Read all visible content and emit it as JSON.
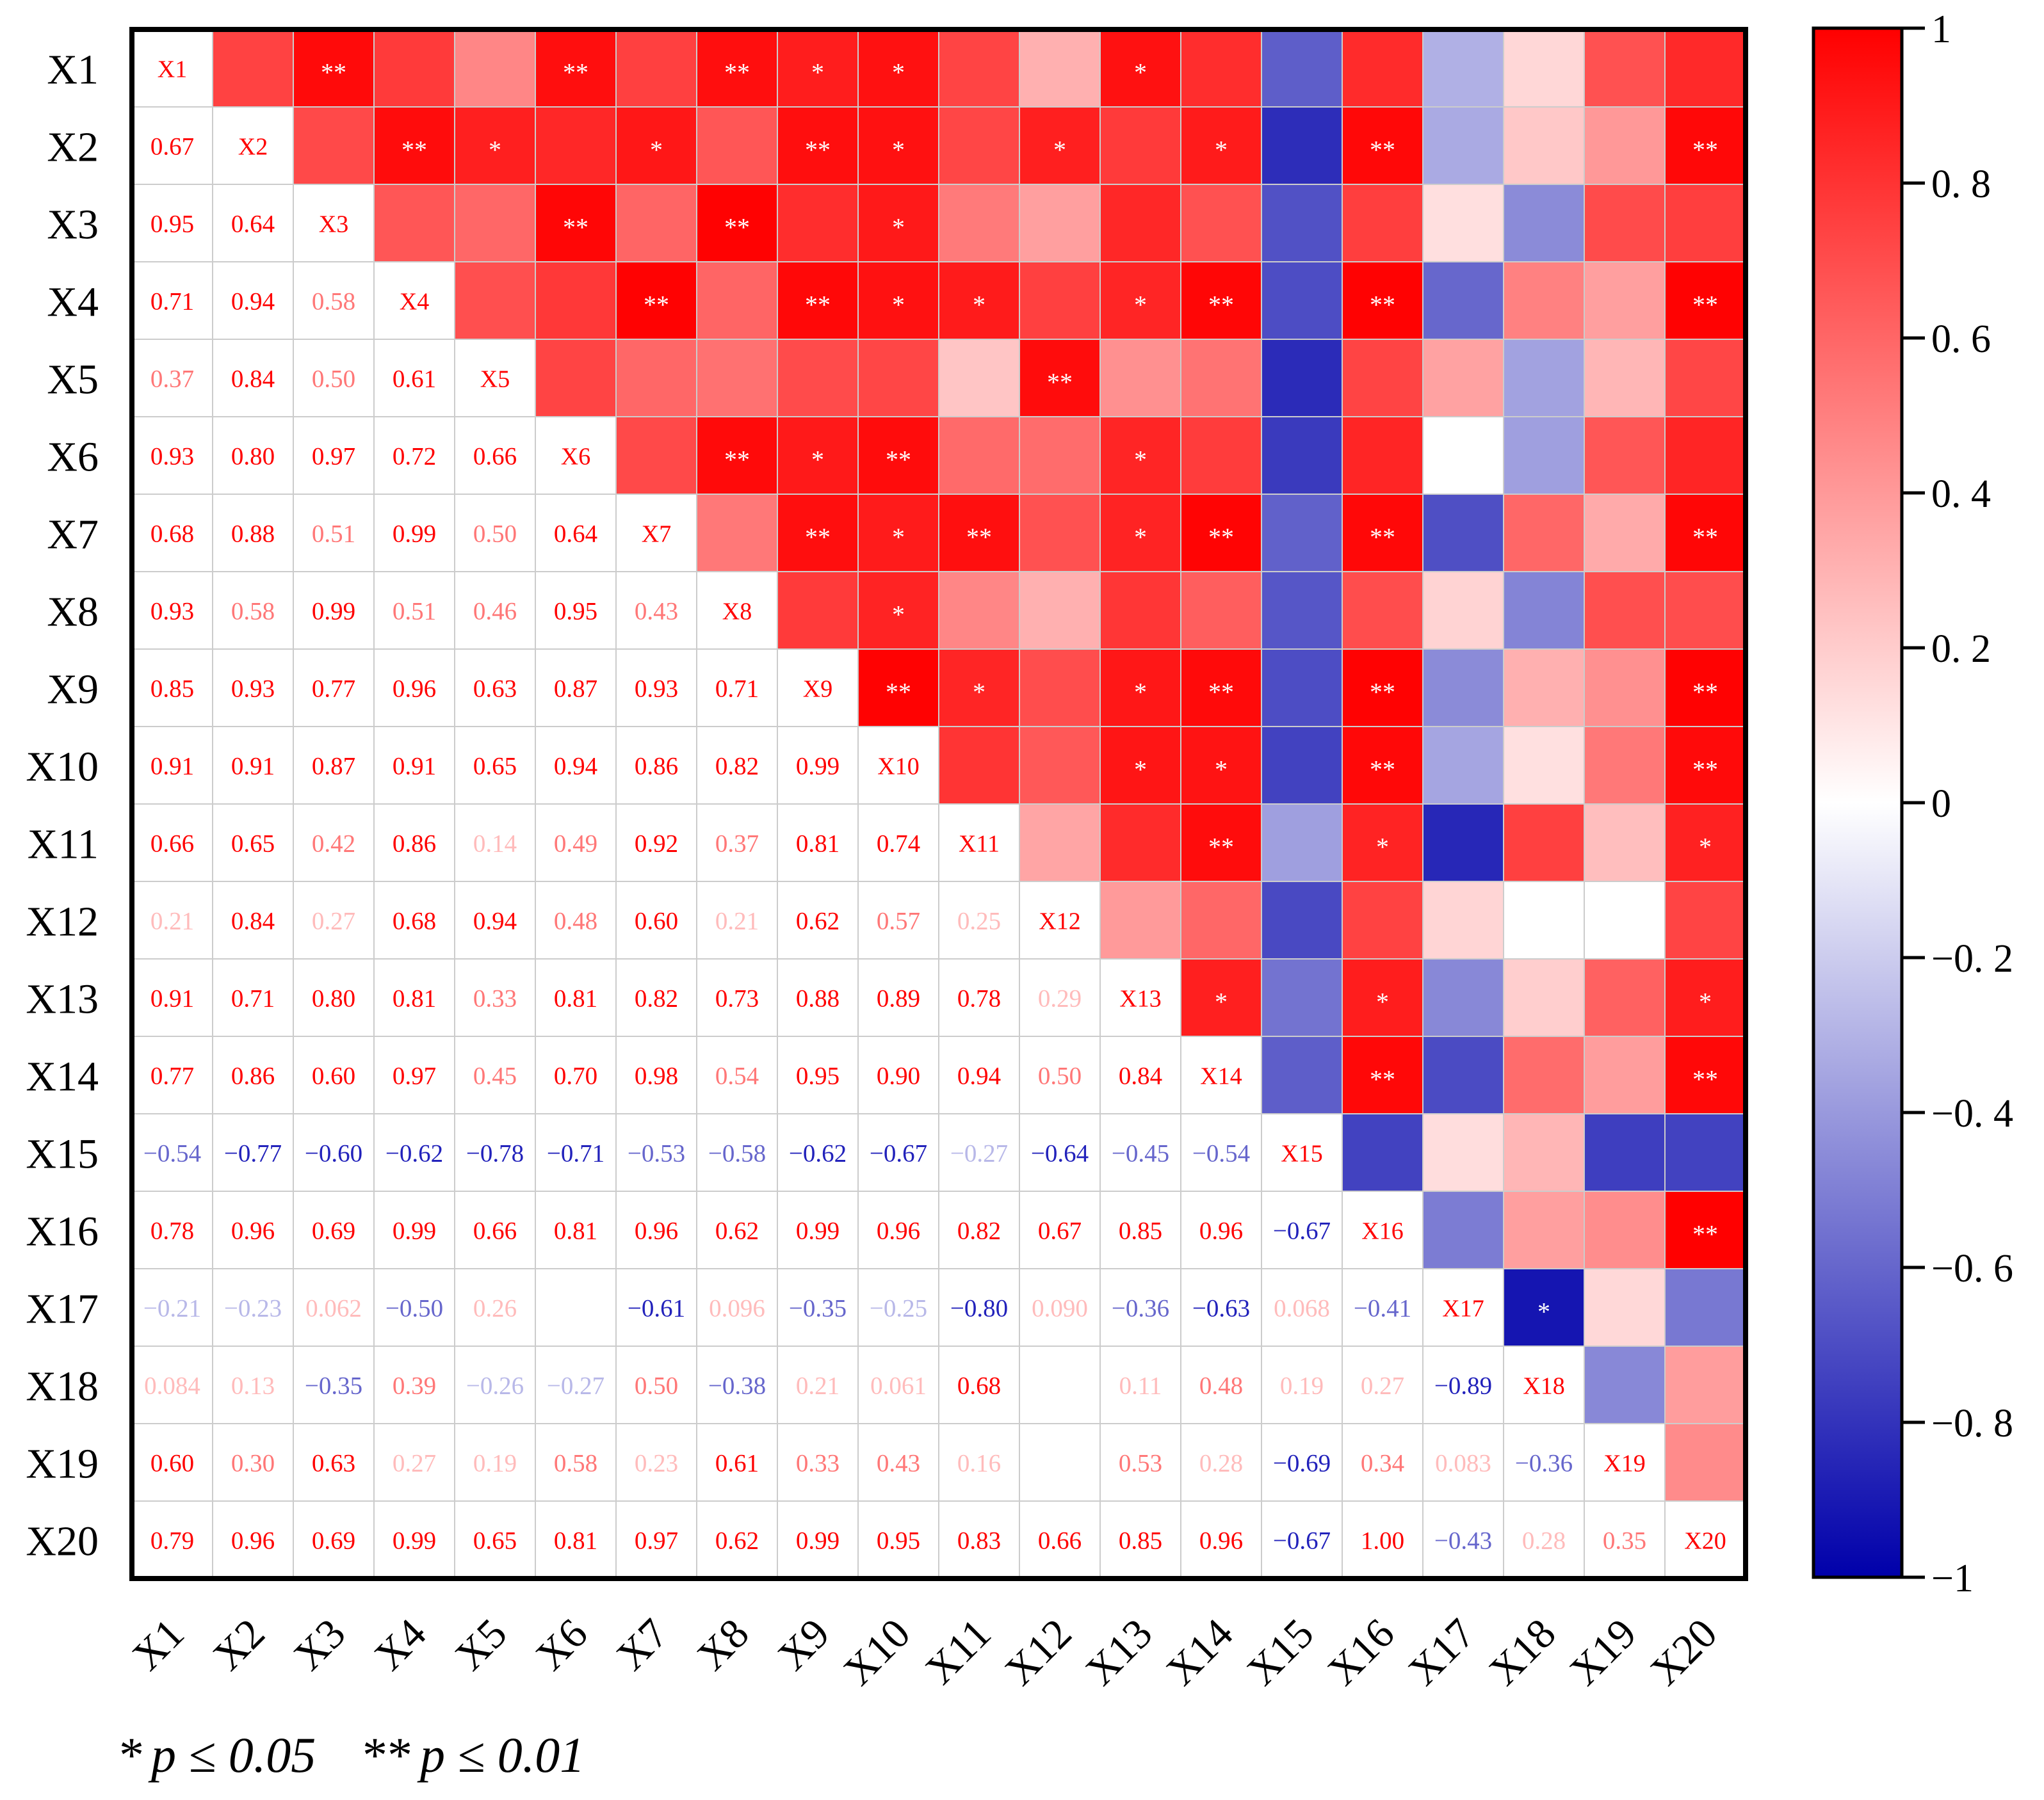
{
  "chart_data": {
    "type": "heatmap",
    "title": "",
    "variables": [
      "X1",
      "X2",
      "X3",
      "X4",
      "X5",
      "X6",
      "X7",
      "X8",
      "X9",
      "X10",
      "X11",
      "X12",
      "X13",
      "X14",
      "X15",
      "X16",
      "X17",
      "X18",
      "X19",
      "X20"
    ],
    "lower_triangle_labels": [
      [],
      [
        "0.67"
      ],
      [
        "0.95",
        "0.64"
      ],
      [
        "0.71",
        "0.94",
        "0.58"
      ],
      [
        "0.37",
        "0.84",
        "0.50",
        "0.61"
      ],
      [
        "0.93",
        "0.80",
        "0.97",
        "0.72",
        "0.66"
      ],
      [
        "0.68",
        "0.88",
        "0.51",
        "0.99",
        "0.50",
        "0.64"
      ],
      [
        "0.93",
        "0.58",
        "0.99",
        "0.51",
        "0.46",
        "0.95",
        "0.43"
      ],
      [
        "0.85",
        "0.93",
        "0.77",
        "0.96",
        "0.63",
        "0.87",
        "0.93",
        "0.71"
      ],
      [
        "0.91",
        "0.91",
        "0.87",
        "0.91",
        "0.65",
        "0.94",
        "0.86",
        "0.82",
        "0.99"
      ],
      [
        "0.66",
        "0.65",
        "0.42",
        "0.86",
        "0.14",
        "0.49",
        "0.92",
        "0.37",
        "0.81",
        "0.74"
      ],
      [
        "0.21",
        "0.84",
        "0.27",
        "0.68",
        "0.94",
        "0.48",
        "0.60",
        "0.21",
        "0.62",
        "0.57",
        "0.25"
      ],
      [
        "0.91",
        "0.71",
        "0.80",
        "0.81",
        "0.33",
        "0.81",
        "0.82",
        "0.73",
        "0.88",
        "0.89",
        "0.78",
        "0.29"
      ],
      [
        "0.77",
        "0.86",
        "0.60",
        "0.97",
        "0.45",
        "0.70",
        "0.98",
        "0.54",
        "0.95",
        "0.90",
        "0.94",
        "0.50",
        "0.84"
      ],
      [
        "−0.54",
        "−0.77",
        "−0.60",
        "−0.62",
        "−0.78",
        "−0.71",
        "−0.53",
        "−0.58",
        "−0.62",
        "−0.67",
        "−0.27",
        "−0.64",
        "−0.45",
        "−0.54"
      ],
      [
        "0.78",
        "0.96",
        "0.69",
        "0.99",
        "0.66",
        "0.81",
        "0.96",
        "0.62",
        "0.99",
        "0.96",
        "0.82",
        "0.67",
        "0.85",
        "0.96",
        "−0.67"
      ],
      [
        "−0.21",
        "−0.23",
        "0.062",
        "−0.50",
        "0.26",
        "",
        "−0.61",
        "0.096",
        "−0.35",
        "−0.25",
        "−0.80",
        "0.090",
        "−0.36",
        "−0.63",
        "0.068",
        "−0.41"
      ],
      [
        "0.084",
        "0.13",
        "−0.35",
        "0.39",
        "−0.26",
        "−0.27",
        "0.50",
        "−0.38",
        "0.21",
        "0.061",
        "0.68",
        "",
        "0.11",
        "0.48",
        "0.19",
        "0.27",
        "−0.89"
      ],
      [
        "0.60",
        "0.30",
        "0.63",
        "0.27",
        "0.19",
        "0.58",
        "0.23",
        "0.61",
        "0.33",
        "0.43",
        "0.16",
        "",
        "0.53",
        "0.28",
        "−0.69",
        "0.34",
        "0.083",
        "−0.36"
      ],
      [
        "0.79",
        "0.96",
        "0.69",
        "0.99",
        "0.65",
        "0.81",
        "0.97",
        "0.62",
        "0.99",
        "0.95",
        "0.83",
        "0.66",
        "0.85",
        "0.96",
        "−0.67",
        "1.00",
        "−0.43",
        "0.28",
        "0.35"
      ]
    ],
    "upper_triangle_values": [
      [
        null,
        0.67,
        0.95,
        0.71,
        0.37,
        0.93,
        0.68,
        0.93,
        0.85,
        0.91,
        0.66,
        0.21,
        0.91,
        0.77,
        -0.54,
        0.78,
        -0.21,
        0.084,
        0.6,
        0.79
      ],
      [
        null,
        null,
        0.64,
        0.94,
        0.84,
        0.8,
        0.88,
        0.58,
        0.93,
        0.91,
        0.65,
        0.84,
        0.71,
        0.86,
        -0.77,
        0.96,
        -0.23,
        0.13,
        0.3,
        0.96
      ],
      [
        null,
        null,
        null,
        0.58,
        0.5,
        0.97,
        0.51,
        0.99,
        0.77,
        0.87,
        0.42,
        0.27,
        0.8,
        0.6,
        -0.6,
        0.69,
        0.062,
        -0.35,
        0.63,
        0.69
      ],
      [
        null,
        null,
        null,
        null,
        0.61,
        0.72,
        0.99,
        0.51,
        0.96,
        0.91,
        0.86,
        0.68,
        0.81,
        0.97,
        -0.62,
        0.99,
        -0.5,
        0.39,
        0.27,
        0.99
      ],
      [
        null,
        null,
        null,
        null,
        null,
        0.66,
        0.5,
        0.46,
        0.63,
        0.65,
        0.14,
        0.94,
        0.33,
        0.45,
        -0.78,
        0.66,
        0.26,
        -0.26,
        0.19,
        0.65
      ],
      [
        null,
        null,
        null,
        null,
        null,
        null,
        0.64,
        0.95,
        0.87,
        0.94,
        0.49,
        0.48,
        0.81,
        0.7,
        -0.71,
        0.81,
        0.0,
        -0.27,
        0.58,
        0.81
      ],
      [
        null,
        null,
        null,
        null,
        null,
        null,
        null,
        0.43,
        0.93,
        0.86,
        0.92,
        0.6,
        0.82,
        0.98,
        -0.53,
        0.96,
        -0.61,
        0.5,
        0.23,
        0.97
      ],
      [
        null,
        null,
        null,
        null,
        null,
        null,
        null,
        null,
        0.71,
        0.82,
        0.37,
        0.21,
        0.73,
        0.54,
        -0.58,
        0.62,
        0.096,
        -0.38,
        0.61,
        0.62
      ],
      [
        null,
        null,
        null,
        null,
        null,
        null,
        null,
        null,
        null,
        0.99,
        0.81,
        0.62,
        0.88,
        0.95,
        -0.62,
        0.99,
        -0.35,
        0.21,
        0.33,
        0.99
      ],
      [
        null,
        null,
        null,
        null,
        null,
        null,
        null,
        null,
        null,
        null,
        0.74,
        0.57,
        0.89,
        0.9,
        -0.67,
        0.96,
        -0.25,
        0.061,
        0.43,
        0.95
      ],
      [
        null,
        null,
        null,
        null,
        null,
        null,
        null,
        null,
        null,
        null,
        null,
        0.25,
        0.78,
        0.94,
        -0.27,
        0.82,
        -0.8,
        0.68,
        0.16,
        0.83
      ],
      [
        null,
        null,
        null,
        null,
        null,
        null,
        null,
        null,
        null,
        null,
        null,
        null,
        0.29,
        0.5,
        -0.64,
        0.67,
        0.09,
        0.0,
        0.0,
        0.66
      ],
      [
        null,
        null,
        null,
        null,
        null,
        null,
        null,
        null,
        null,
        null,
        null,
        null,
        null,
        0.84,
        -0.45,
        0.85,
        -0.36,
        0.11,
        0.53,
        0.85
      ],
      [
        null,
        null,
        null,
        null,
        null,
        null,
        null,
        null,
        null,
        null,
        null,
        null,
        null,
        null,
        -0.54,
        0.96,
        -0.63,
        0.48,
        0.28,
        0.96
      ],
      [
        null,
        null,
        null,
        null,
        null,
        null,
        null,
        null,
        null,
        null,
        null,
        null,
        null,
        null,
        null,
        -0.67,
        0.068,
        0.19,
        -0.69,
        -0.67
      ],
      [
        null,
        null,
        null,
        null,
        null,
        null,
        null,
        null,
        null,
        null,
        null,
        null,
        null,
        null,
        null,
        null,
        -0.41,
        0.27,
        0.34,
        1.0
      ],
      [
        null,
        null,
        null,
        null,
        null,
        null,
        null,
        null,
        null,
        null,
        null,
        null,
        null,
        null,
        null,
        null,
        null,
        -0.89,
        0.083,
        -0.43
      ],
      [
        null,
        null,
        null,
        null,
        null,
        null,
        null,
        null,
        null,
        null,
        null,
        null,
        null,
        null,
        null,
        null,
        null,
        null,
        -0.36,
        0.28
      ],
      [
        null,
        null,
        null,
        null,
        null,
        null,
        null,
        null,
        null,
        null,
        null,
        null,
        null,
        null,
        null,
        null,
        null,
        null,
        null,
        0.35
      ],
      [
        null,
        null,
        null,
        null,
        null,
        null,
        null,
        null,
        null,
        null,
        null,
        null,
        null,
        null,
        null,
        null,
        null,
        null,
        null,
        null
      ]
    ],
    "significance_stars": [
      [
        null,
        "",
        "**",
        "",
        "",
        "**",
        "",
        "**",
        "*",
        "*",
        "",
        "",
        "*",
        "",
        "",
        "",
        "",
        "",
        "",
        ""
      ],
      [
        null,
        null,
        "",
        "**",
        "*",
        "",
        "*",
        "",
        "**",
        "*",
        "",
        "*",
        "",
        "*",
        "",
        "**",
        "",
        "",
        "",
        "**"
      ],
      [
        null,
        null,
        null,
        "",
        "",
        "**",
        "",
        "**",
        "",
        "*",
        "",
        "",
        "",
        "",
        "",
        "",
        "",
        "",
        "",
        ""
      ],
      [
        null,
        null,
        null,
        null,
        "",
        "",
        "**",
        "",
        "**",
        "*",
        "*",
        "",
        "*",
        "**",
        "",
        "**",
        "",
        "",
        "",
        "**"
      ],
      [
        null,
        null,
        null,
        null,
        null,
        "",
        "",
        "",
        "",
        "",
        "",
        "**",
        "",
        "",
        "",
        "",
        "",
        "",
        "",
        ""
      ],
      [
        null,
        null,
        null,
        null,
        null,
        null,
        "",
        "**",
        "*",
        "**",
        "",
        "",
        "*",
        "",
        "",
        "",
        "",
        "",
        "",
        ""
      ],
      [
        null,
        null,
        null,
        null,
        null,
        null,
        null,
        "",
        "**",
        "*",
        "**",
        "",
        "*",
        "**",
        "",
        "**",
        "",
        "",
        "",
        "**"
      ],
      [
        null,
        null,
        null,
        null,
        null,
        null,
        null,
        null,
        "",
        "*",
        "",
        "",
        "",
        "",
        "",
        "",
        "",
        "",
        "",
        ""
      ],
      [
        null,
        null,
        null,
        null,
        null,
        null,
        null,
        null,
        null,
        "**",
        "*",
        "",
        "*",
        "**",
        "",
        "**",
        "",
        "",
        "",
        "**"
      ],
      [
        null,
        null,
        null,
        null,
        null,
        null,
        null,
        null,
        null,
        null,
        "",
        "",
        "*",
        "*",
        "",
        "**",
        "",
        "",
        "",
        "**"
      ],
      [
        null,
        null,
        null,
        null,
        null,
        null,
        null,
        null,
        null,
        null,
        null,
        "",
        "",
        "**",
        "",
        "*",
        "",
        "",
        "",
        "*"
      ],
      [
        null,
        null,
        null,
        null,
        null,
        null,
        null,
        null,
        null,
        null,
        null,
        null,
        "",
        "",
        "",
        "",
        "",
        "",
        "",
        ""
      ],
      [
        null,
        null,
        null,
        null,
        null,
        null,
        null,
        null,
        null,
        null,
        null,
        null,
        null,
        "*",
        "",
        "*",
        "",
        "",
        "",
        "*"
      ],
      [
        null,
        null,
        null,
        null,
        null,
        null,
        null,
        null,
        null,
        null,
        null,
        null,
        null,
        null,
        "",
        "**",
        "",
        "",
        "",
        "**"
      ],
      [
        null,
        null,
        null,
        null,
        null,
        null,
        null,
        null,
        null,
        null,
        null,
        null,
        null,
        null,
        null,
        "",
        "",
        "",
        "",
        ""
      ],
      [
        null,
        null,
        null,
        null,
        null,
        null,
        null,
        null,
        null,
        null,
        null,
        null,
        null,
        null,
        null,
        null,
        "",
        "",
        "",
        "**"
      ],
      [
        null,
        null,
        null,
        null,
        null,
        null,
        null,
        null,
        null,
        null,
        null,
        null,
        null,
        null,
        null,
        null,
        null,
        "*",
        "",
        ""
      ],
      [
        null,
        null,
        null,
        null,
        null,
        null,
        null,
        null,
        null,
        null,
        null,
        null,
        null,
        null,
        null,
        null,
        null,
        null,
        "",
        ""
      ],
      [
        null,
        null,
        null,
        null,
        null,
        null,
        null,
        null,
        null,
        null,
        null,
        null,
        null,
        null,
        null,
        null,
        null,
        null,
        null,
        ""
      ],
      [
        null,
        null,
        null,
        null,
        null,
        null,
        null,
        null,
        null,
        null,
        null,
        null,
        null,
        null,
        null,
        null,
        null,
        null,
        null,
        null
      ]
    ],
    "colorbar": {
      "range": [
        -1,
        1
      ],
      "ticks": [
        1,
        0.8,
        0.6,
        0.4,
        0.2,
        0,
        -0.2,
        -0.4,
        -0.6,
        -0.8,
        -1
      ],
      "tick_labels": [
        "1",
        "0. 8",
        "0. 6",
        "0. 4",
        "0. 2",
        "0",
        "−0. 2",
        "−0. 4",
        "−0. 6",
        "−0. 8",
        "−1"
      ],
      "color_max": "#ff0000",
      "color_mid": "#ffffff",
      "color_min": "#0000aa"
    },
    "footnote": {
      "sig1_symbol": "*",
      "sig1_text": "p ≤ 0.05",
      "sig2_symbol": "**",
      "sig2_text": "p ≤ 0.01"
    }
  }
}
